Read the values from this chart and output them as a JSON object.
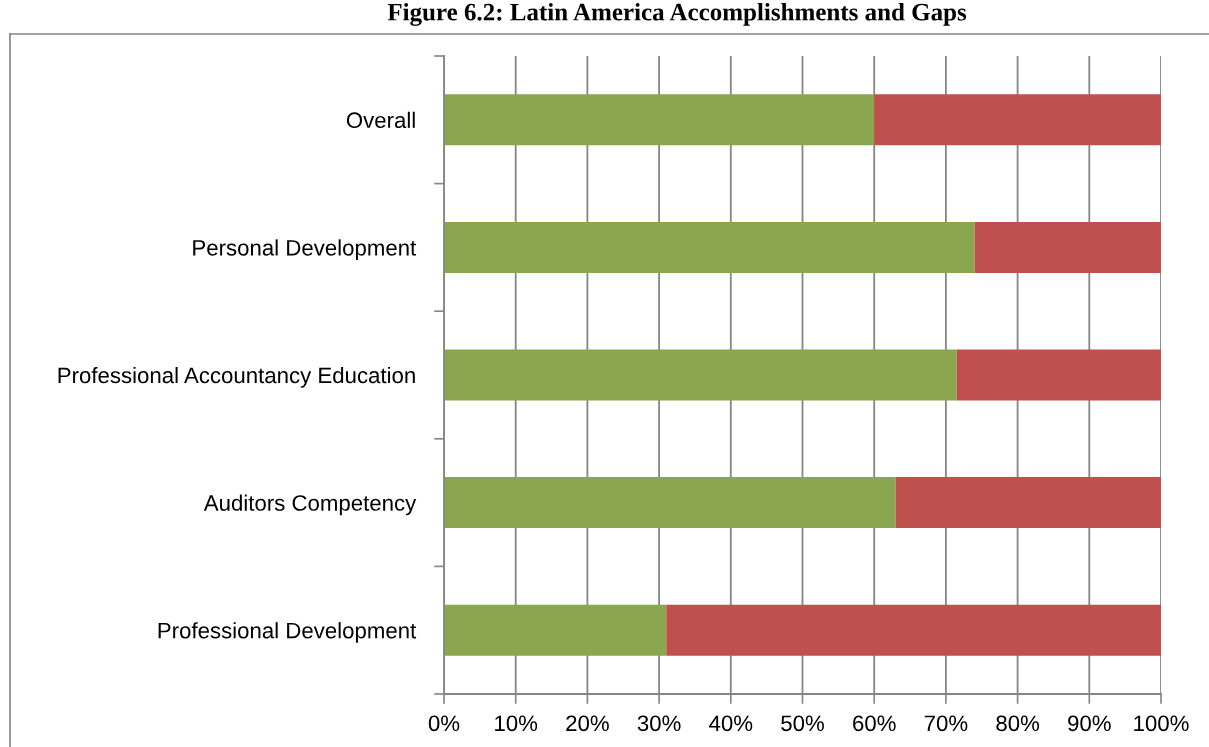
{
  "chart_data": {
    "type": "bar",
    "orientation": "horizontal",
    "stacked": true,
    "title": "Figure 6.2: Latin America Accomplishments and Gaps",
    "categories": [
      "Overall",
      "Personal Development",
      "Professional Accountancy Education",
      "Auditors Competency",
      "Professional Development"
    ],
    "series": [
      {
        "color": "#8aa64e",
        "values": [
          60,
          74,
          71.5,
          63,
          31
        ]
      },
      {
        "color": "#c0504d",
        "values": [
          40,
          26,
          28.5,
          37,
          69
        ]
      }
    ],
    "xlim": [
      0,
      100
    ],
    "xticks": [
      {
        "value": 0,
        "label": "0%"
      },
      {
        "value": 10,
        "label": "10%"
      },
      {
        "value": 20,
        "label": "20%"
      },
      {
        "value": 30,
        "label": "30%"
      },
      {
        "value": 40,
        "label": "40%"
      },
      {
        "value": 50,
        "label": "50%"
      },
      {
        "value": 60,
        "label": "60%"
      },
      {
        "value": 70,
        "label": "70%"
      },
      {
        "value": 80,
        "label": "80%"
      },
      {
        "value": 90,
        "label": "90%"
      },
      {
        "value": 100,
        "label": "100%"
      }
    ],
    "grid": "x"
  }
}
